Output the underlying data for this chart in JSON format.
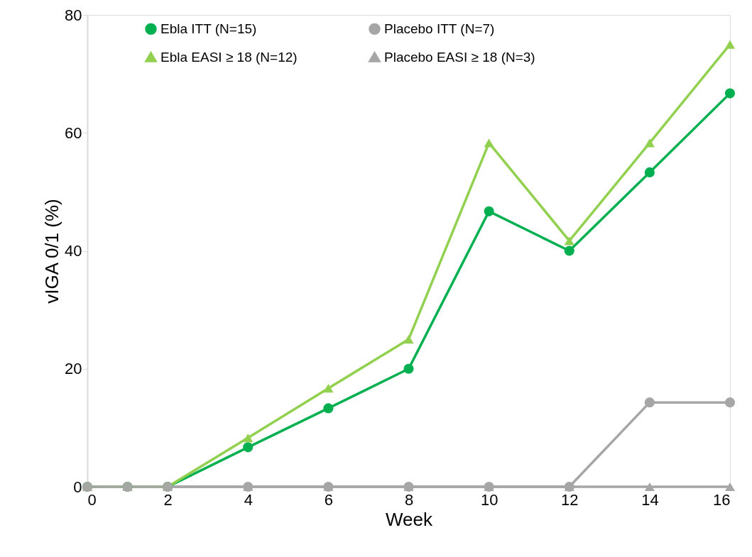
{
  "chart_data": {
    "type": "line",
    "xlabel": "Week",
    "ylabel": "vIGA 0/1 (%)",
    "x": [
      0,
      1,
      2,
      4,
      6,
      8,
      10,
      12,
      14,
      16
    ],
    "series": [
      {
        "name": "Ebla ITT (N=15)",
        "color": "#00b050",
        "marker": "circle",
        "values": [
          0,
          0,
          0,
          6.7,
          13.3,
          20,
          46.7,
          40,
          53.3,
          66.7
        ]
      },
      {
        "name": "Placebo ITT (N=7)",
        "color": "#a6a6a6",
        "marker": "circle",
        "values": [
          0,
          0,
          0,
          0,
          0,
          0,
          0,
          0,
          14.3,
          14.3
        ]
      },
      {
        "name": "Ebla EASI ≥ 18  (N=12)",
        "color": "#92d050",
        "marker": "triangle",
        "values": [
          0,
          0,
          0,
          8.3,
          16.7,
          25,
          58.3,
          41.7,
          58.3,
          75
        ]
      },
      {
        "name": "Placebo EASI ≥ 18 (N=3)",
        "color": "#a6a6a6",
        "marker": "triangle",
        "values": [
          0,
          0,
          0,
          0,
          0,
          0,
          0,
          0,
          0,
          0
        ]
      }
    ],
    "xlim": [
      0,
      16
    ],
    "xticks": [
      0,
      2,
      4,
      6,
      8,
      10,
      12,
      14,
      16
    ],
    "ylim": [
      0,
      80
    ],
    "yticks": [
      0,
      20,
      40,
      60,
      80
    ],
    "grid": false,
    "legend": "top",
    "line_style": "solid"
  }
}
